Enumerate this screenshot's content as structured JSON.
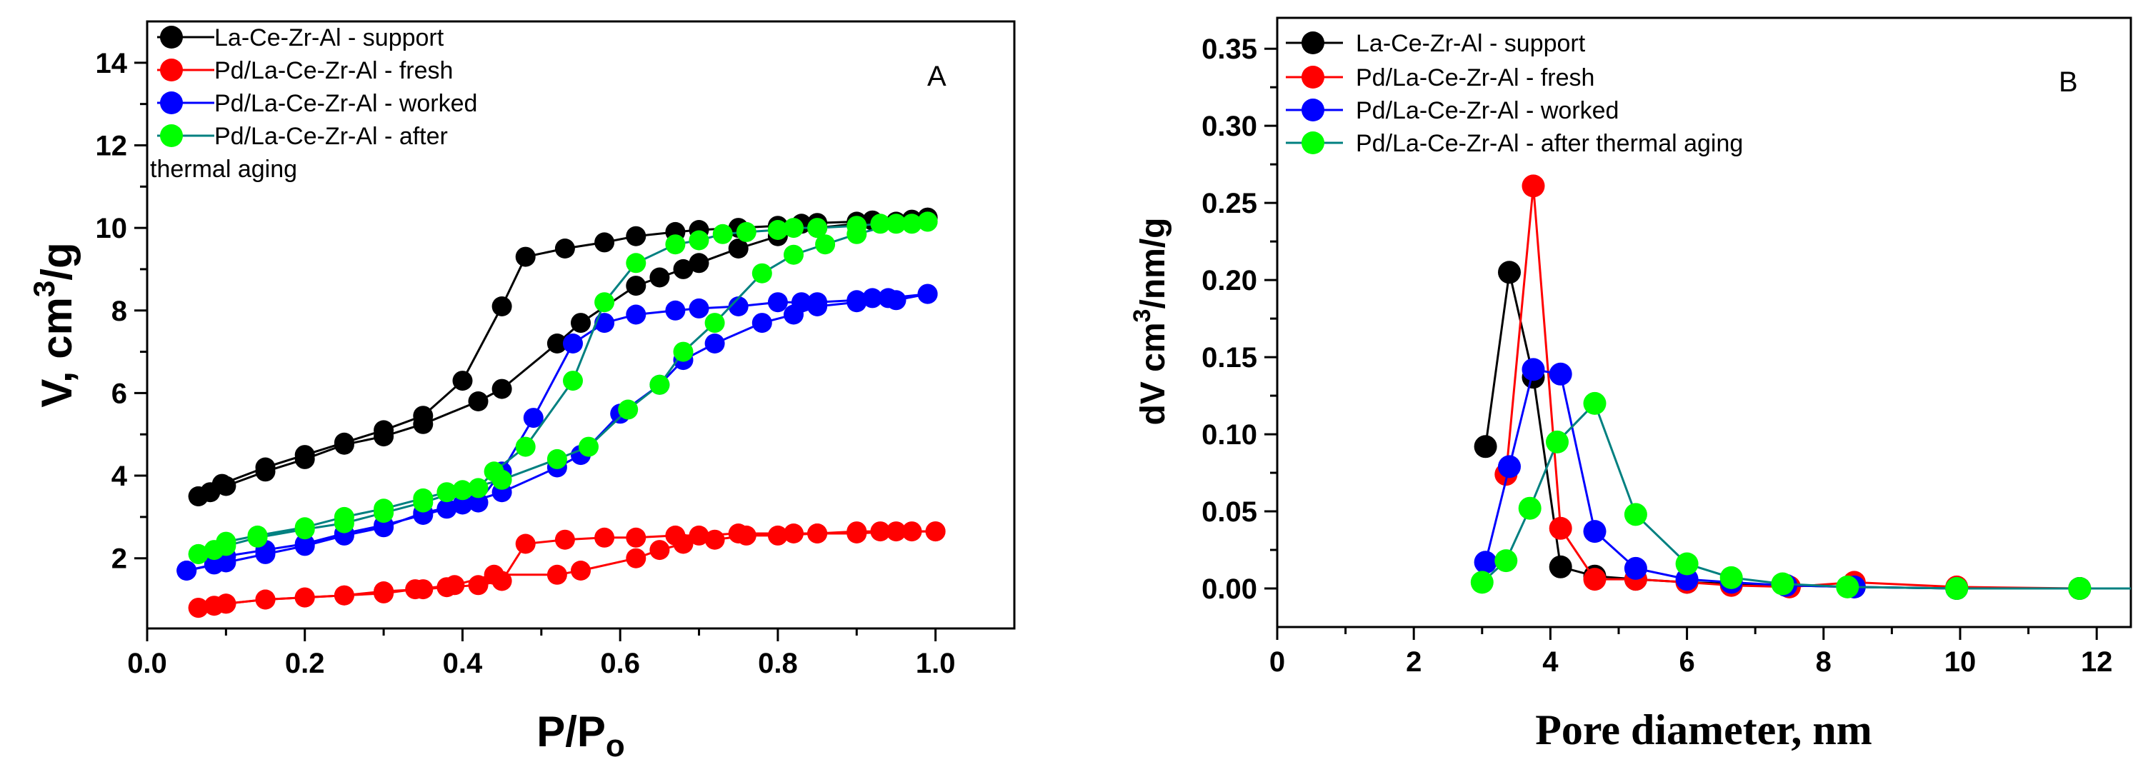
{
  "chart_data": [
    {
      "panel": "A",
      "type": "scatter",
      "panel_label": "A",
      "xlabel_main": "P/P",
      "xlabel_sub": "o",
      "ylabel_main": "V, cm",
      "ylabel_sup": "3",
      "ylabel_tail": "/g",
      "xlim": [
        0.0,
        1.1
      ],
      "ylim": [
        0.3,
        15.0
      ],
      "xticks": [
        0.0,
        0.2,
        0.4,
        0.6,
        0.8,
        1.0
      ],
      "xtick_labels": [
        "0.0",
        "0.2",
        "0.4",
        "0.6",
        "0.8",
        "1.0"
      ],
      "yticks": [
        2,
        4,
        6,
        8,
        10,
        12,
        14
      ],
      "ytick_labels": [
        "2",
        "4",
        "6",
        "8",
        "10",
        "12",
        "14"
      ],
      "legend_position": "top-left",
      "series": [
        {
          "name": "La-Ce-Zr-Al - support",
          "color": "#000000",
          "line_color": "#000000",
          "adsorption": [
            [
              0.065,
              3.5
            ],
            [
              0.08,
              3.6
            ],
            [
              0.095,
              3.8
            ],
            [
              0.15,
              4.2
            ],
            [
              0.2,
              4.5
            ],
            [
              0.25,
              4.8
            ],
            [
              0.3,
              5.1
            ],
            [
              0.35,
              5.45
            ],
            [
              0.4,
              6.3
            ],
            [
              0.45,
              8.1
            ],
            [
              0.48,
              9.3
            ],
            [
              0.53,
              9.5
            ],
            [
              0.58,
              9.65
            ],
            [
              0.62,
              9.8
            ],
            [
              0.67,
              9.9
            ],
            [
              0.7,
              9.95
            ],
            [
              0.75,
              10.0
            ],
            [
              0.8,
              10.05
            ],
            [
              0.83,
              10.1
            ],
            [
              0.85,
              10.12
            ],
            [
              0.9,
              10.15
            ],
            [
              0.92,
              10.18
            ],
            [
              0.97,
              10.2
            ],
            [
              0.99,
              10.25
            ]
          ],
          "desorption": [
            [
              0.99,
              10.25
            ],
            [
              0.95,
              10.15
            ],
            [
              0.9,
              10.1
            ],
            [
              0.85,
              10.0
            ],
            [
              0.8,
              9.8
            ],
            [
              0.75,
              9.5
            ],
            [
              0.7,
              9.15
            ],
            [
              0.68,
              9.0
            ],
            [
              0.65,
              8.8
            ],
            [
              0.62,
              8.6
            ],
            [
              0.55,
              7.7
            ],
            [
              0.52,
              7.2
            ],
            [
              0.45,
              6.1
            ],
            [
              0.42,
              5.8
            ],
            [
              0.35,
              5.25
            ],
            [
              0.3,
              4.95
            ],
            [
              0.25,
              4.75
            ],
            [
              0.2,
              4.4
            ],
            [
              0.15,
              4.1
            ],
            [
              0.1,
              3.75
            ],
            [
              0.065,
              3.5
            ]
          ]
        },
        {
          "name": "Pd/La-Ce-Zr-Al - fresh",
          "color": "#ff0000",
          "line_color": "#ff0000",
          "adsorption": [
            [
              0.065,
              0.8
            ],
            [
              0.085,
              0.85
            ],
            [
              0.1,
              0.9
            ],
            [
              0.15,
              1.0
            ],
            [
              0.2,
              1.05
            ],
            [
              0.25,
              1.1
            ],
            [
              0.3,
              1.2
            ],
            [
              0.35,
              1.25
            ],
            [
              0.38,
              1.3
            ],
            [
              0.42,
              1.35
            ],
            [
              0.45,
              1.45
            ],
            [
              0.48,
              2.35
            ],
            [
              0.53,
              2.45
            ],
            [
              0.58,
              2.5
            ],
            [
              0.62,
              2.5
            ],
            [
              0.67,
              2.55
            ],
            [
              0.7,
              2.55
            ],
            [
              0.75,
              2.6
            ],
            [
              0.82,
              2.6
            ],
            [
              0.85,
              2.6
            ],
            [
              0.9,
              2.65
            ],
            [
              0.93,
              2.65
            ],
            [
              0.97,
              2.65
            ],
            [
              1.0,
              2.65
            ]
          ],
          "desorption": [
            [
              1.0,
              2.65
            ],
            [
              0.95,
              2.65
            ],
            [
              0.9,
              2.6
            ],
            [
              0.85,
              2.6
            ],
            [
              0.8,
              2.55
            ],
            [
              0.76,
              2.55
            ],
            [
              0.72,
              2.45
            ],
            [
              0.68,
              2.35
            ],
            [
              0.65,
              2.2
            ],
            [
              0.62,
              2.0
            ],
            [
              0.55,
              1.7
            ],
            [
              0.52,
              1.6
            ],
            [
              0.44,
              1.6
            ],
            [
              0.39,
              1.35
            ],
            [
              0.34,
              1.25
            ],
            [
              0.3,
              1.15
            ],
            [
              0.25,
              1.1
            ],
            [
              0.2,
              1.05
            ],
            [
              0.15,
              1.0
            ],
            [
              0.1,
              0.9
            ],
            [
              0.065,
              0.8
            ]
          ]
        },
        {
          "name": "Pd/La-Ce-Zr-Al - worked",
          "color": "#0000ff",
          "line_color": "#0000ff",
          "adsorption": [
            [
              0.05,
              1.7
            ],
            [
              0.085,
              1.85
            ],
            [
              0.1,
              2.05
            ],
            [
              0.15,
              2.2
            ],
            [
              0.2,
              2.35
            ],
            [
              0.25,
              2.6
            ],
            [
              0.3,
              2.8
            ],
            [
              0.35,
              3.05
            ],
            [
              0.38,
              3.2
            ],
            [
              0.42,
              3.35
            ],
            [
              0.45,
              4.1
            ],
            [
              0.49,
              5.4
            ],
            [
              0.54,
              7.2
            ],
            [
              0.58,
              7.7
            ],
            [
              0.62,
              7.9
            ],
            [
              0.67,
              8.0
            ],
            [
              0.7,
              8.05
            ],
            [
              0.75,
              8.1
            ],
            [
              0.8,
              8.2
            ],
            [
              0.83,
              8.2
            ],
            [
              0.85,
              8.2
            ],
            [
              0.9,
              8.25
            ],
            [
              0.92,
              8.3
            ],
            [
              0.94,
              8.3
            ],
            [
              0.99,
              8.4
            ]
          ],
          "desorption": [
            [
              0.99,
              8.4
            ],
            [
              0.95,
              8.25
            ],
            [
              0.9,
              8.2
            ],
            [
              0.85,
              8.1
            ],
            [
              0.82,
              7.9
            ],
            [
              0.78,
              7.7
            ],
            [
              0.72,
              7.2
            ],
            [
              0.68,
              6.8
            ],
            [
              0.65,
              6.2
            ],
            [
              0.6,
              5.5
            ],
            [
              0.55,
              4.5
            ],
            [
              0.52,
              4.2
            ],
            [
              0.45,
              3.6
            ],
            [
              0.4,
              3.3
            ],
            [
              0.35,
              3.1
            ],
            [
              0.3,
              2.75
            ],
            [
              0.25,
              2.55
            ],
            [
              0.2,
              2.3
            ],
            [
              0.15,
              2.1
            ],
            [
              0.1,
              1.9
            ],
            [
              0.05,
              1.7
            ]
          ]
        },
        {
          "name": "Pd/La-Ce-Zr-Al - after",
          "name_cont": "thermal aging",
          "color": "#00ff00",
          "line_color": "#008080",
          "adsorption": [
            [
              0.065,
              2.1
            ],
            [
              0.085,
              2.2
            ],
            [
              0.1,
              2.4
            ],
            [
              0.14,
              2.55
            ],
            [
              0.2,
              2.75
            ],
            [
              0.25,
              3.0
            ],
            [
              0.3,
              3.2
            ],
            [
              0.35,
              3.45
            ],
            [
              0.38,
              3.6
            ],
            [
              0.42,
              3.7
            ],
            [
              0.44,
              4.1
            ],
            [
              0.48,
              4.7
            ],
            [
              0.54,
              6.3
            ],
            [
              0.58,
              8.2
            ],
            [
              0.62,
              9.15
            ],
            [
              0.67,
              9.6
            ],
            [
              0.7,
              9.7
            ],
            [
              0.73,
              9.85
            ],
            [
              0.76,
              9.9
            ],
            [
              0.8,
              9.95
            ],
            [
              0.82,
              10.0
            ],
            [
              0.85,
              10.0
            ],
            [
              0.9,
              10.05
            ],
            [
              0.93,
              10.1
            ],
            [
              0.97,
              10.1
            ],
            [
              0.99,
              10.15
            ]
          ],
          "desorption": [
            [
              0.99,
              10.15
            ],
            [
              0.95,
              10.1
            ],
            [
              0.9,
              9.85
            ],
            [
              0.86,
              9.6
            ],
            [
              0.82,
              9.35
            ],
            [
              0.78,
              8.9
            ],
            [
              0.72,
              7.7
            ],
            [
              0.68,
              7.0
            ],
            [
              0.65,
              6.2
            ],
            [
              0.61,
              5.6
            ],
            [
              0.56,
              4.7
            ],
            [
              0.52,
              4.4
            ],
            [
              0.45,
              3.9
            ],
            [
              0.4,
              3.65
            ],
            [
              0.35,
              3.35
            ],
            [
              0.3,
              3.1
            ],
            [
              0.25,
              2.85
            ],
            [
              0.2,
              2.7
            ],
            [
              0.14,
              2.5
            ],
            [
              0.1,
              2.3
            ],
            [
              0.065,
              2.1
            ]
          ]
        }
      ]
    },
    {
      "panel": "B",
      "type": "line",
      "panel_label": "B",
      "xlabel": "Pore diameter, nm",
      "ylabel_main": "dV cm",
      "ylabel_sup": "3",
      "ylabel_tail": "/nm/g",
      "xlim": [
        0,
        12.5
      ],
      "ylim": [
        -0.025,
        0.37
      ],
      "xticks": [
        0,
        2,
        4,
        6,
        8,
        10,
        12
      ],
      "xtick_labels": [
        "0",
        "2",
        "4",
        "6",
        "8",
        "10",
        "12"
      ],
      "yticks": [
        0.0,
        0.05,
        0.1,
        0.15,
        0.2,
        0.25,
        0.3,
        0.35
      ],
      "ytick_labels": [
        "0.00",
        "0.05",
        "0.10",
        "0.15",
        "0.20",
        "0.25",
        "0.30",
        "0.35"
      ],
      "legend_position": "top-left",
      "series": [
        {
          "name": "La-Ce-Zr-Al - support",
          "color": "#000000",
          "line_color": "#000000",
          "points": [
            [
              3.05,
              0.092
            ],
            [
              3.4,
              0.205
            ],
            [
              3.75,
              0.137
            ],
            [
              4.15,
              0.014
            ],
            [
              4.65,
              0.008
            ],
            [
              5.25,
              0.006
            ],
            [
              6.0,
              0.004
            ],
            [
              6.65,
              0.003
            ],
            [
              7.45,
              0.002
            ],
            [
              8.45,
              0.001
            ],
            [
              9.95,
              0.0
            ],
            [
              11.75,
              0.0
            ],
            [
              12.5,
              0.0
            ]
          ]
        },
        {
          "name": "Pd/La-Ce-Zr-Al - fresh",
          "color": "#ff0000",
          "line_color": "#ff0000",
          "points": [
            [
              3.35,
              0.074
            ],
            [
              3.75,
              0.261
            ],
            [
              4.15,
              0.039
            ],
            [
              4.65,
              0.006
            ],
            [
              5.25,
              0.006
            ],
            [
              6.0,
              0.004
            ],
            [
              6.65,
              0.002
            ],
            [
              7.5,
              0.001
            ],
            [
              8.45,
              0.004
            ],
            [
              9.95,
              0.001
            ],
            [
              11.75,
              0.0
            ],
            [
              12.5,
              0.0
            ]
          ]
        },
        {
          "name": "Pd/La-Ce-Zr-Al - worked",
          "color": "#0000ff",
          "line_color": "#0000ff",
          "points": [
            [
              3.05,
              0.017
            ],
            [
              3.4,
              0.079
            ],
            [
              3.75,
              0.142
            ],
            [
              4.15,
              0.139
            ],
            [
              4.65,
              0.037
            ],
            [
              5.25,
              0.013
            ],
            [
              6.0,
              0.006
            ],
            [
              6.65,
              0.004
            ],
            [
              7.45,
              0.002
            ],
            [
              8.45,
              0.001
            ],
            [
              9.95,
              0.0
            ],
            [
              11.75,
              0.0
            ],
            [
              12.5,
              0.0
            ]
          ]
        },
        {
          "name": "Pd/La-Ce-Zr-Al  - after thermal aging",
          "color": "#00ff00",
          "line_color": "#008080",
          "points": [
            [
              3.0,
              0.004
            ],
            [
              3.35,
              0.018
            ],
            [
              3.7,
              0.052
            ],
            [
              4.1,
              0.095
            ],
            [
              4.65,
              0.12
            ],
            [
              5.25,
              0.048
            ],
            [
              6.0,
              0.016
            ],
            [
              6.65,
              0.007
            ],
            [
              7.4,
              0.003
            ],
            [
              8.35,
              0.001
            ],
            [
              9.95,
              0.0
            ],
            [
              11.75,
              0.0
            ],
            [
              12.5,
              0.0
            ]
          ]
        }
      ]
    }
  ]
}
